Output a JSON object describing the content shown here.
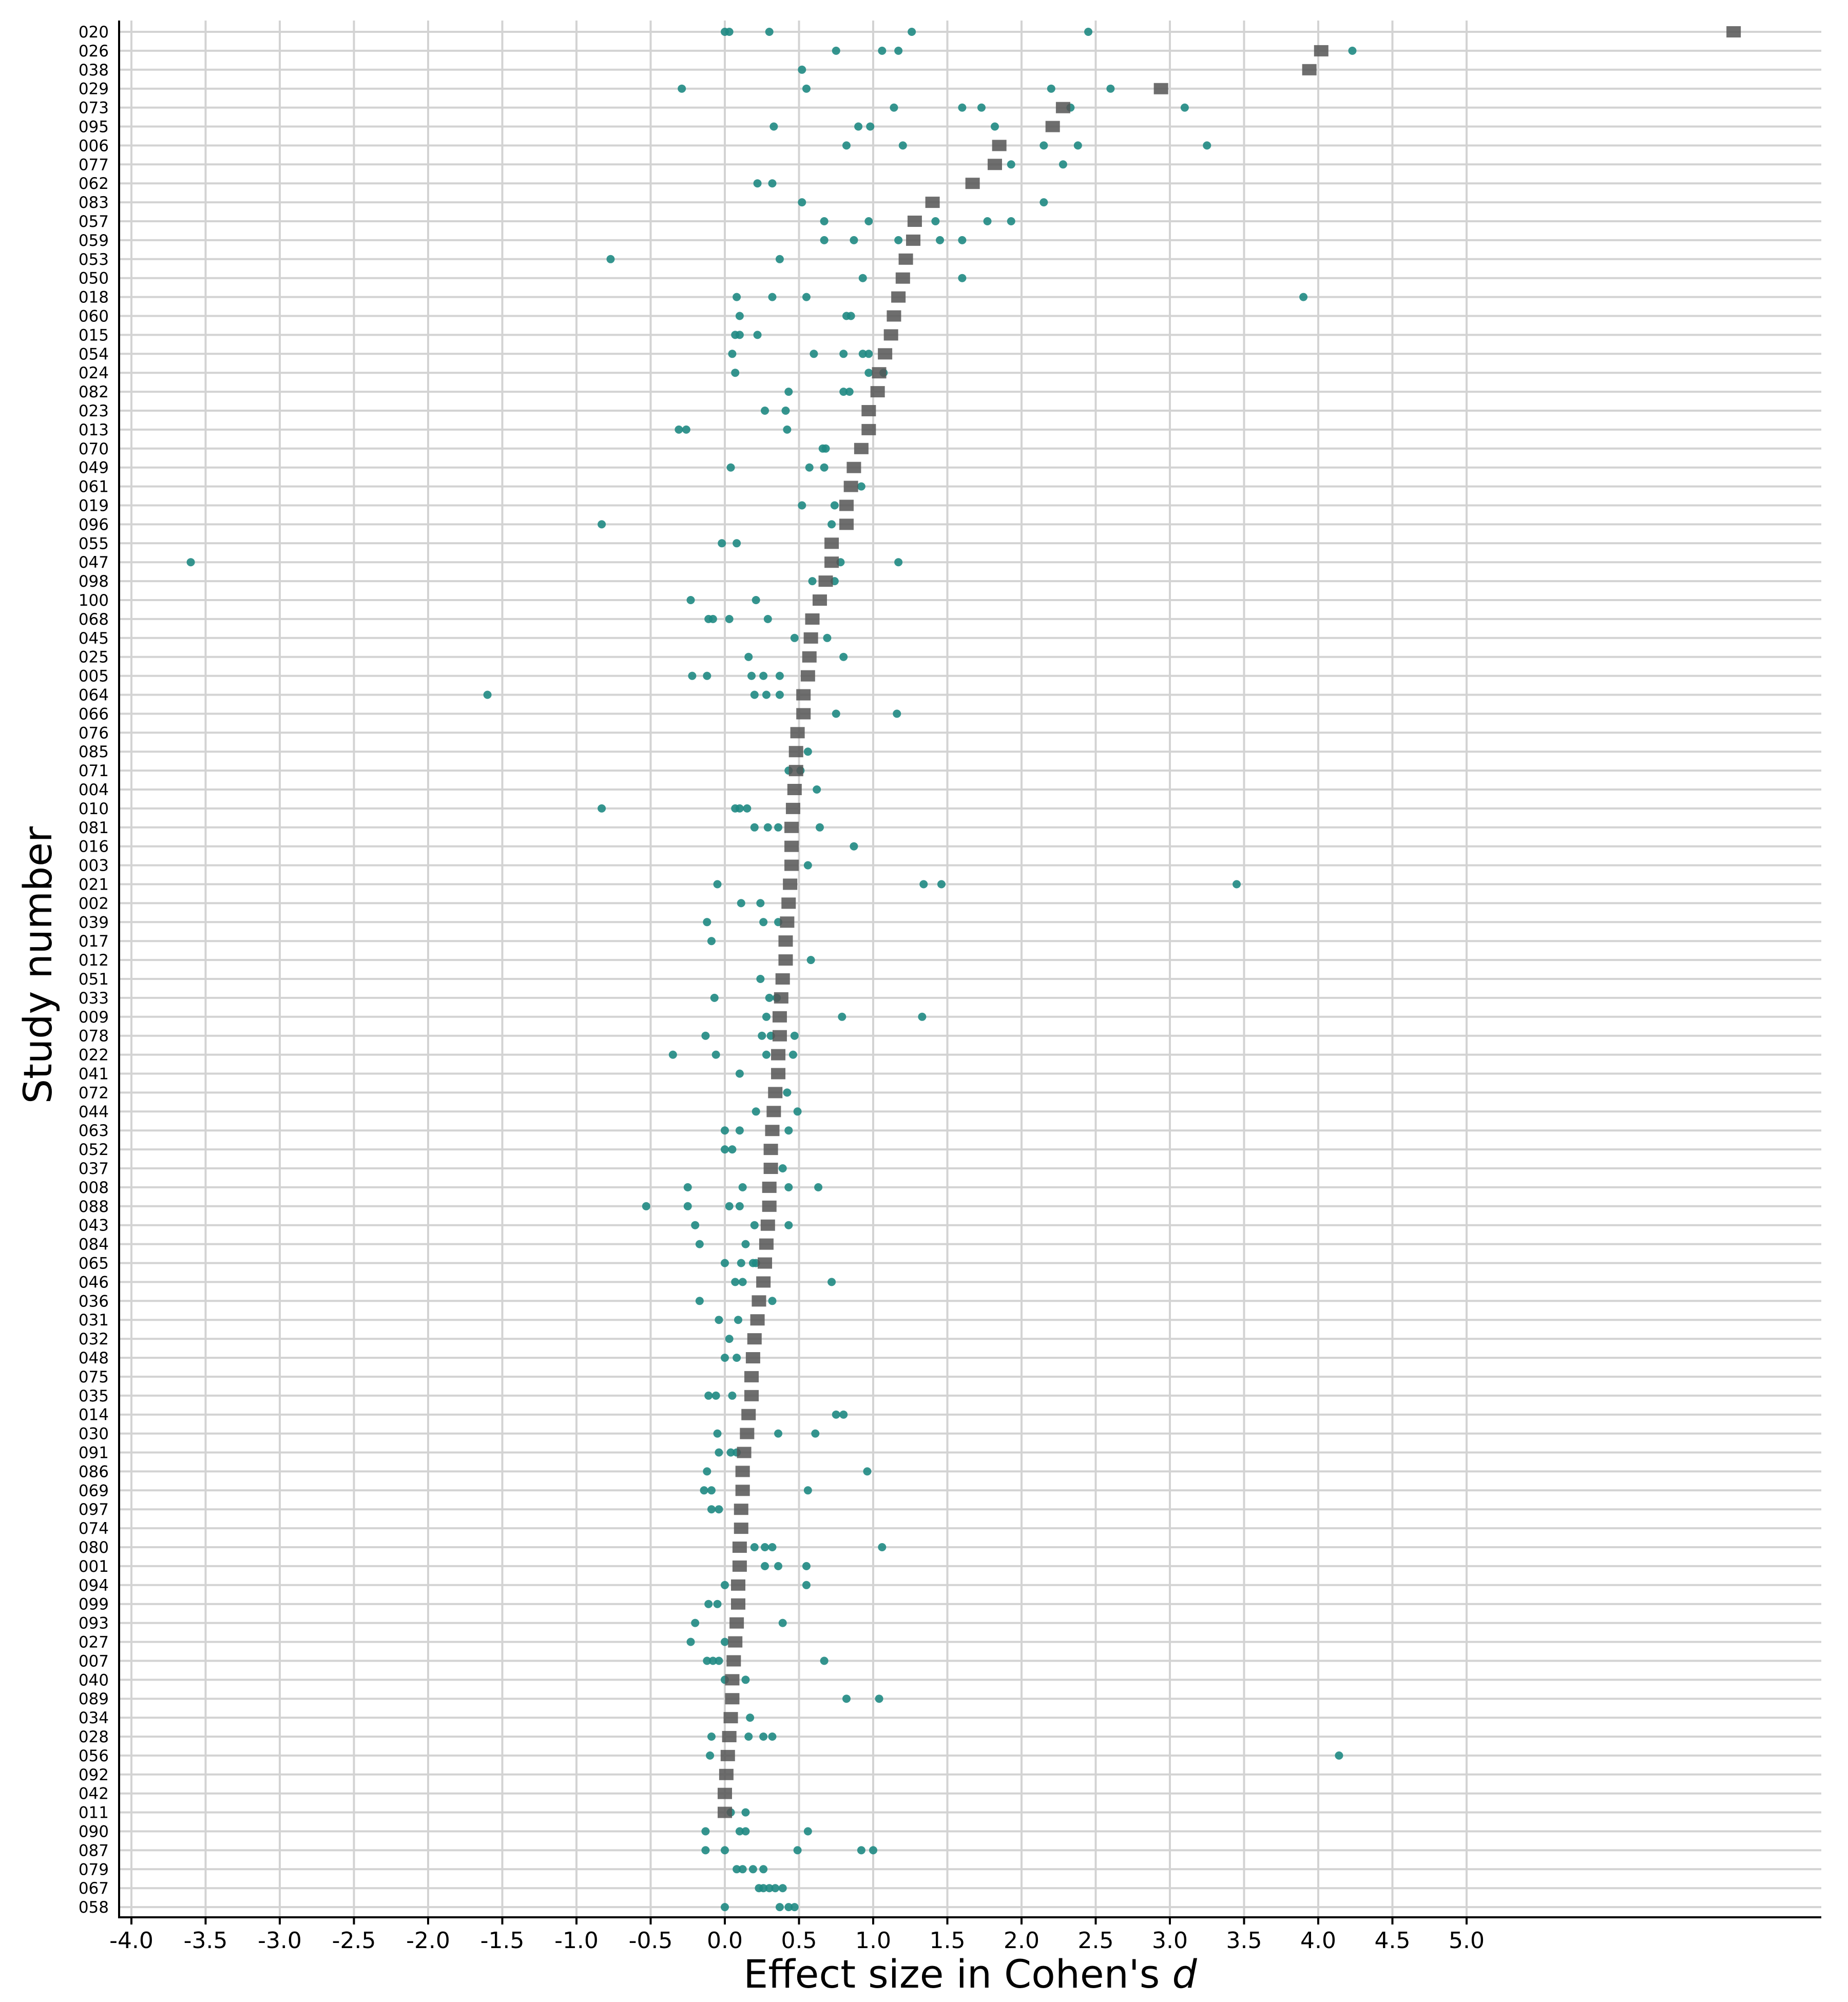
{
  "chart_data": {
    "type": "scatter",
    "title": "",
    "xlabel_text": "Effect size in Cohen's ",
    "xlabel_italic": "d",
    "ylabel": "Study number",
    "xlim": [
      -4.2,
      7.4
    ],
    "xticks": [
      "-4.0",
      "-3.5",
      "-3.0",
      "-2.5",
      "-2.0",
      "-1.5",
      "-1.0",
      "-0.5",
      "0.0",
      "0.5",
      "1.0",
      "1.5",
      "2.0",
      "2.5",
      "3.0",
      "3.5",
      "4.0",
      "4.5",
      "5.0"
    ],
    "grid": true,
    "legend": "none",
    "colors": {
      "points": "#1f8a83",
      "mean": "#555555",
      "grid": "#d3d3d3",
      "axis": "#000000"
    },
    "studies": [
      {
        "id": "020",
        "mean": 6.8,
        "points": [
          0.0,
          0.03,
          0.3,
          1.26,
          2.45
        ]
      },
      {
        "id": "026",
        "mean": 4.02,
        "points": [
          0.75,
          1.06,
          1.17,
          4.23
        ]
      },
      {
        "id": "038",
        "mean": 3.94,
        "points": [
          0.52
        ]
      },
      {
        "id": "029",
        "mean": 2.94,
        "points": [
          -0.29,
          0.55,
          2.2,
          2.6
        ]
      },
      {
        "id": "073",
        "mean": 2.28,
        "points": [
          1.14,
          1.6,
          1.73,
          2.33,
          3.1
        ]
      },
      {
        "id": "095",
        "mean": 2.21,
        "points": [
          0.33,
          0.9,
          0.98,
          1.82
        ]
      },
      {
        "id": "006",
        "mean": 1.85,
        "points": [
          0.82,
          1.2,
          2.15,
          2.38,
          3.25
        ]
      },
      {
        "id": "077",
        "mean": 1.82,
        "points": [
          1.93,
          2.28
        ]
      },
      {
        "id": "062",
        "mean": 1.67,
        "points": [
          0.22,
          0.32
        ]
      },
      {
        "id": "083",
        "mean": 1.4,
        "points": [
          0.52,
          2.15
        ]
      },
      {
        "id": "057",
        "mean": 1.28,
        "points": [
          0.67,
          0.97,
          1.42,
          1.77,
          1.93
        ]
      },
      {
        "id": "059",
        "mean": 1.27,
        "points": [
          0.67,
          0.87,
          1.17,
          1.45,
          1.6
        ]
      },
      {
        "id": "053",
        "mean": 1.22,
        "points": [
          -0.77,
          0.37
        ]
      },
      {
        "id": "050",
        "mean": 1.2,
        "points": [
          0.93,
          1.6
        ]
      },
      {
        "id": "018",
        "mean": 1.17,
        "points": [
          0.08,
          0.32,
          0.55,
          3.9
        ]
      },
      {
        "id": "060",
        "mean": 1.14,
        "points": [
          0.1,
          0.82,
          0.85
        ]
      },
      {
        "id": "015",
        "mean": 1.12,
        "points": [
          0.07,
          0.1,
          0.22
        ]
      },
      {
        "id": "054",
        "mean": 1.08,
        "points": [
          0.05,
          0.6,
          0.8,
          0.93,
          0.97
        ]
      },
      {
        "id": "024",
        "mean": 1.04,
        "points": [
          0.07,
          0.97,
          1.07
        ]
      },
      {
        "id": "082",
        "mean": 1.03,
        "points": [
          0.43,
          0.8,
          0.84
        ]
      },
      {
        "id": "023",
        "mean": 0.97,
        "points": [
          0.27,
          0.41
        ]
      },
      {
        "id": "013",
        "mean": 0.97,
        "points": [
          -0.31,
          -0.26,
          0.42
        ]
      },
      {
        "id": "070",
        "mean": 0.92,
        "points": [
          0.66,
          0.68
        ]
      },
      {
        "id": "049",
        "mean": 0.87,
        "points": [
          0.04,
          0.57,
          0.67
        ]
      },
      {
        "id": "061",
        "mean": 0.85,
        "points": [
          0.92
        ]
      },
      {
        "id": "019",
        "mean": 0.82,
        "points": [
          0.52,
          0.74
        ]
      },
      {
        "id": "096",
        "mean": 0.82,
        "points": [
          -0.83,
          0.72
        ]
      },
      {
        "id": "055",
        "mean": 0.72,
        "points": [
          -0.02,
          0.08
        ]
      },
      {
        "id": "047",
        "mean": 0.72,
        "points": [
          -3.6,
          0.78,
          1.17
        ]
      },
      {
        "id": "098",
        "mean": 0.68,
        "points": [
          0.59,
          0.74
        ]
      },
      {
        "id": "100",
        "mean": 0.64,
        "points": [
          -0.23,
          0.21
        ]
      },
      {
        "id": "068",
        "mean": 0.59,
        "points": [
          -0.11,
          -0.08,
          0.03,
          0.29
        ]
      },
      {
        "id": "045",
        "mean": 0.58,
        "points": [
          0.47,
          0.69
        ]
      },
      {
        "id": "025",
        "mean": 0.57,
        "points": [
          0.16,
          0.8
        ]
      },
      {
        "id": "005",
        "mean": 0.56,
        "points": [
          -0.22,
          -0.12,
          0.18,
          0.26,
          0.37
        ]
      },
      {
        "id": "064",
        "mean": 0.53,
        "points": [
          -1.6,
          0.2,
          0.28,
          0.37
        ]
      },
      {
        "id": "066",
        "mean": 0.53,
        "points": [
          0.75,
          1.16
        ]
      },
      {
        "id": "076",
        "mean": 0.49,
        "points": []
      },
      {
        "id": "085",
        "mean": 0.48,
        "points": [
          0.56
        ]
      },
      {
        "id": "071",
        "mean": 0.48,
        "points": [
          0.43,
          0.51
        ]
      },
      {
        "id": "004",
        "mean": 0.47,
        "points": [
          0.62
        ]
      },
      {
        "id": "010",
        "mean": 0.46,
        "points": [
          -0.83,
          0.07,
          0.1,
          0.15
        ]
      },
      {
        "id": "081",
        "mean": 0.45,
        "points": [
          0.2,
          0.29,
          0.36,
          0.64
        ]
      },
      {
        "id": "016",
        "mean": 0.45,
        "points": [
          0.87
        ]
      },
      {
        "id": "003",
        "mean": 0.45,
        "points": [
          0.56
        ]
      },
      {
        "id": "021",
        "mean": 0.44,
        "points": [
          -0.05,
          1.34,
          1.46,
          3.45
        ]
      },
      {
        "id": "002",
        "mean": 0.43,
        "points": [
          0.11,
          0.24
        ]
      },
      {
        "id": "039",
        "mean": 0.42,
        "points": [
          -0.12,
          0.26,
          0.36
        ]
      },
      {
        "id": "017",
        "mean": 0.41,
        "points": [
          -0.09
        ]
      },
      {
        "id": "012",
        "mean": 0.41,
        "points": [
          0.58
        ]
      },
      {
        "id": "051",
        "mean": 0.39,
        "points": [
          0.24
        ]
      },
      {
        "id": "033",
        "mean": 0.38,
        "points": [
          -0.07,
          0.3,
          0.35
        ]
      },
      {
        "id": "009",
        "mean": 0.37,
        "points": [
          0.28,
          0.79,
          1.33
        ]
      },
      {
        "id": "078",
        "mean": 0.37,
        "points": [
          -0.13,
          0.25,
          0.31,
          0.47
        ]
      },
      {
        "id": "022",
        "mean": 0.36,
        "points": [
          -0.35,
          -0.06,
          0.28,
          0.46
        ]
      },
      {
        "id": "041",
        "mean": 0.36,
        "points": [
          0.1
        ]
      },
      {
        "id": "072",
        "mean": 0.34,
        "points": [
          0.42
        ]
      },
      {
        "id": "044",
        "mean": 0.33,
        "points": [
          0.21,
          0.49
        ]
      },
      {
        "id": "063",
        "mean": 0.32,
        "points": [
          0.0,
          0.1,
          0.43
        ]
      },
      {
        "id": "052",
        "mean": 0.31,
        "points": [
          0.0,
          0.05
        ]
      },
      {
        "id": "037",
        "mean": 0.31,
        "points": [
          0.39
        ]
      },
      {
        "id": "008",
        "mean": 0.3,
        "points": [
          -0.25,
          0.12,
          0.43,
          0.63
        ]
      },
      {
        "id": "088",
        "mean": 0.3,
        "points": [
          -0.53,
          -0.25,
          0.03,
          0.1
        ]
      },
      {
        "id": "043",
        "mean": 0.29,
        "points": [
          -0.2,
          0.2,
          0.43
        ]
      },
      {
        "id": "084",
        "mean": 0.28,
        "points": [
          -0.17,
          0.14
        ]
      },
      {
        "id": "065",
        "mean": 0.27,
        "points": [
          0.0,
          0.11,
          0.19,
          0.21
        ]
      },
      {
        "id": "046",
        "mean": 0.26,
        "points": [
          0.07,
          0.12,
          0.72
        ]
      },
      {
        "id": "036",
        "mean": 0.23,
        "points": [
          -0.17,
          0.32
        ]
      },
      {
        "id": "031",
        "mean": 0.22,
        "points": [
          -0.04,
          0.09
        ]
      },
      {
        "id": "032",
        "mean": 0.2,
        "points": [
          0.03
        ]
      },
      {
        "id": "048",
        "mean": 0.19,
        "points": [
          0.0,
          0.08
        ]
      },
      {
        "id": "075",
        "mean": 0.18,
        "points": []
      },
      {
        "id": "035",
        "mean": 0.18,
        "points": [
          -0.11,
          -0.06,
          0.05
        ]
      },
      {
        "id": "014",
        "mean": 0.16,
        "points": [
          0.75,
          0.8
        ]
      },
      {
        "id": "030",
        "mean": 0.15,
        "points": [
          -0.05,
          0.36,
          0.61
        ]
      },
      {
        "id": "091",
        "mean": 0.13,
        "points": [
          -0.04,
          0.04,
          0.08
        ]
      },
      {
        "id": "086",
        "mean": 0.12,
        "points": [
          -0.12,
          0.96
        ]
      },
      {
        "id": "069",
        "mean": 0.12,
        "points": [
          -0.14,
          -0.09,
          0.56
        ]
      },
      {
        "id": "097",
        "mean": 0.11,
        "points": [
          -0.09,
          -0.04
        ]
      },
      {
        "id": "074",
        "mean": 0.11,
        "points": []
      },
      {
        "id": "080",
        "mean": 0.1,
        "points": [
          0.2,
          0.27,
          0.32,
          1.06
        ]
      },
      {
        "id": "001",
        "mean": 0.1,
        "points": [
          0.27,
          0.36,
          0.55
        ]
      },
      {
        "id": "094",
        "mean": 0.09,
        "points": [
          0.0,
          0.55
        ]
      },
      {
        "id": "099",
        "mean": 0.09,
        "points": [
          -0.11,
          -0.05
        ]
      },
      {
        "id": "093",
        "mean": 0.08,
        "points": [
          -0.2,
          0.39
        ]
      },
      {
        "id": "027",
        "mean": 0.07,
        "points": [
          -0.23,
          0.0
        ]
      },
      {
        "id": "007",
        "mean": 0.06,
        "points": [
          -0.12,
          -0.08,
          -0.04,
          0.67
        ]
      },
      {
        "id": "040",
        "mean": 0.05,
        "points": [
          0.0,
          0.14
        ]
      },
      {
        "id": "089",
        "mean": 0.05,
        "points": [
          0.82,
          1.04
        ]
      },
      {
        "id": "034",
        "mean": 0.04,
        "points": [
          0.17
        ]
      },
      {
        "id": "028",
        "mean": 0.03,
        "points": [
          -0.09,
          0.16,
          0.26,
          0.32
        ]
      },
      {
        "id": "056",
        "mean": 0.02,
        "points": [
          -0.1,
          4.14
        ]
      },
      {
        "id": "092",
        "mean": 0.01,
        "points": []
      },
      {
        "id": "042",
        "mean": 0.0,
        "points": []
      },
      {
        "id": "011",
        "mean": 0.0,
        "points": [
          0.04,
          0.14
        ]
      },
      {
        "id": "090",
        "mean": null,
        "points": [
          -0.13,
          0.1,
          0.14,
          0.56
        ]
      },
      {
        "id": "087",
        "mean": null,
        "points": [
          -0.13,
          0.0,
          0.49,
          0.92,
          1.0
        ]
      },
      {
        "id": "079",
        "mean": null,
        "points": [
          0.08,
          0.12,
          0.19,
          0.26
        ]
      },
      {
        "id": "067",
        "mean": null,
        "points": [
          0.23,
          0.26,
          0.3,
          0.34,
          0.39
        ]
      },
      {
        "id": "058",
        "mean": null,
        "points": [
          0.0,
          0.37,
          0.43,
          0.47
        ]
      }
    ]
  }
}
